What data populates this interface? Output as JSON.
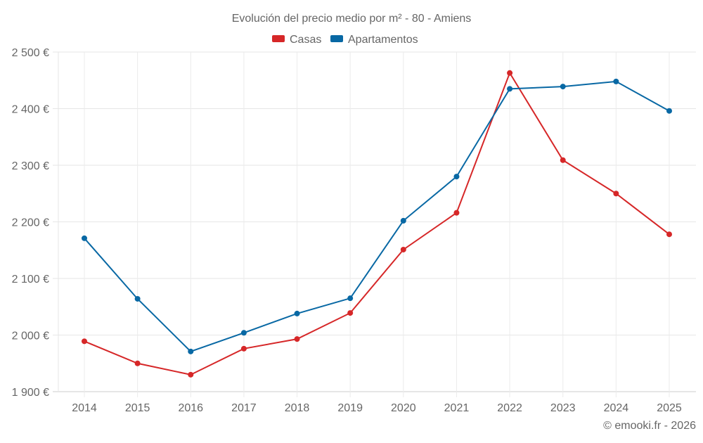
{
  "chart_data": {
    "type": "line",
    "title": "Evolución del precio medio por m² - 80 - Amiens",
    "xlabel": "",
    "ylabel": "",
    "categories": [
      "2014",
      "2015",
      "2016",
      "2017",
      "2018",
      "2019",
      "2020",
      "2021",
      "2022",
      "2023",
      "2024",
      "2025"
    ],
    "ylim": [
      1900,
      2500
    ],
    "yticks": [
      1900,
      2000,
      2100,
      2200,
      2300,
      2400,
      2500
    ],
    "ytick_labels": [
      "1 900 €",
      "2 000 €",
      "2 100 €",
      "2 200 €",
      "2 300 €",
      "2 400 €",
      "2 500 €"
    ],
    "grid": true,
    "legend_position": "top-center",
    "series": [
      {
        "name": "Casas",
        "color": "#d62728",
        "values": [
          1989,
          1950,
          1930,
          1976,
          1993,
          2039,
          2151,
          2216,
          2463,
          2309,
          2250,
          2178
        ]
      },
      {
        "name": "Apartamentos",
        "color": "#0868a4",
        "values": [
          2171,
          2064,
          1971,
          2004,
          2038,
          2065,
          2202,
          2280,
          2435,
          2439,
          2448,
          2396
        ]
      }
    ],
    "credit": "© emooki.fr - 2026"
  }
}
